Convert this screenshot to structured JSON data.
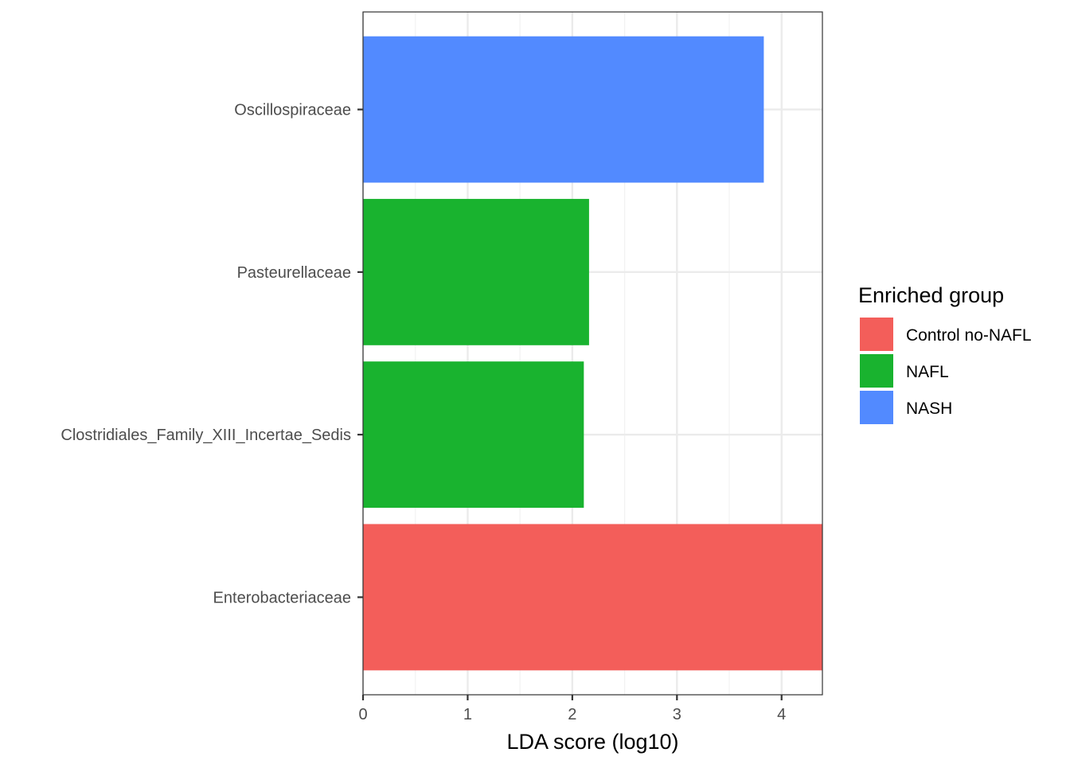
{
  "chart_data": {
    "type": "bar",
    "orientation": "horizontal",
    "categories": [
      "Oscillospiraceae",
      "Pasteurellaceae",
      "Clostridiales_Family_XIII_Incertae_Sedis",
      "Enterobacteriaceae"
    ],
    "values": [
      3.83,
      2.16,
      2.11,
      4.39
    ],
    "groups": [
      "NASH",
      "NAFL",
      "NAFL",
      "Control no-NAFL"
    ],
    "xlabel": "LDA score (log10)",
    "ylabel": "",
    "xlim": [
      0,
      4.39
    ],
    "xticks": [
      0,
      1,
      2,
      3,
      4
    ],
    "grid": true,
    "legend": {
      "title": "Enriched group",
      "position": "right",
      "entries": [
        {
          "label": "Control no-NAFL",
          "color": "#F35E5A"
        },
        {
          "label": "NAFL",
          "color": "#19B32F"
        },
        {
          "label": "NASH",
          "color": "#528AFF"
        }
      ]
    }
  }
}
